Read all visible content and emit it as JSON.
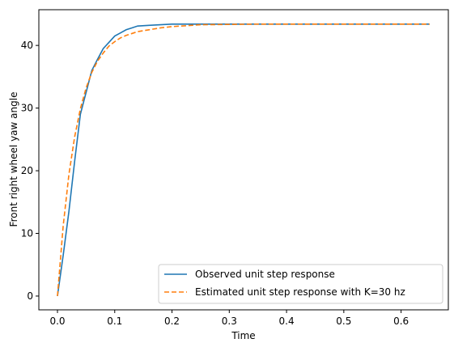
{
  "chart_data": {
    "type": "line",
    "title": "",
    "xlabel": "Time",
    "ylabel": "Front right wheel yaw angle",
    "xlim": [
      -0.0325,
      0.6825
    ],
    "ylim": [
      -2.2,
      45.7
    ],
    "xticks": [
      0.0,
      0.1,
      0.2,
      0.3,
      0.4,
      0.5,
      0.6
    ],
    "xtick_labels": [
      "0.0",
      "0.1",
      "0.2",
      "0.3",
      "0.4",
      "0.5",
      "0.6"
    ],
    "yticks": [
      0,
      10,
      20,
      30,
      40
    ],
    "ytick_labels": [
      "0",
      "10",
      "20",
      "30",
      "40"
    ],
    "grid": false,
    "legend_position": "bottom-right",
    "series": [
      {
        "name": "Observed unit step response",
        "color": "#1f77b4",
        "style": "solid",
        "x": [
          0.0,
          0.01,
          0.02,
          0.03,
          0.04,
          0.05,
          0.06,
          0.07,
          0.08,
          0.09,
          0.1,
          0.11,
          0.12,
          0.13,
          0.14,
          0.16,
          0.18,
          0.2,
          0.25,
          0.3,
          0.35,
          0.4,
          0.45,
          0.5,
          0.55,
          0.6,
          0.65
        ],
        "y": [
          0,
          6.5,
          13.5,
          21.5,
          29,
          32.5,
          36,
          37.8,
          39.5,
          40.5,
          41.5,
          42.0,
          42.5,
          42.8,
          43.1,
          43.2,
          43.3,
          43.4,
          43.4,
          43.4,
          43.4,
          43.4,
          43.4,
          43.4,
          43.4,
          43.4,
          43.4
        ]
      },
      {
        "name": "Estimated unit step response with K=30 hz",
        "color": "#ff7f0e",
        "style": "dashed",
        "x": [
          0.0,
          0.01,
          0.02,
          0.03,
          0.04,
          0.05,
          0.06,
          0.07,
          0.08,
          0.09,
          0.1,
          0.11,
          0.12,
          0.13,
          0.14,
          0.16,
          0.18,
          0.2,
          0.25,
          0.3,
          0.35,
          0.4,
          0.45,
          0.5,
          0.55,
          0.6,
          0.65
        ],
        "y": [
          0,
          11.2,
          19.4,
          25.4,
          29.9,
          33.2,
          35.7,
          37.5,
          38.8,
          39.9,
          40.6,
          41.2,
          41.6,
          41.9,
          42.2,
          42.5,
          42.8,
          43.0,
          43.3,
          43.35,
          43.4,
          43.4,
          43.4,
          43.4,
          43.4,
          43.4,
          43.4
        ]
      }
    ]
  }
}
